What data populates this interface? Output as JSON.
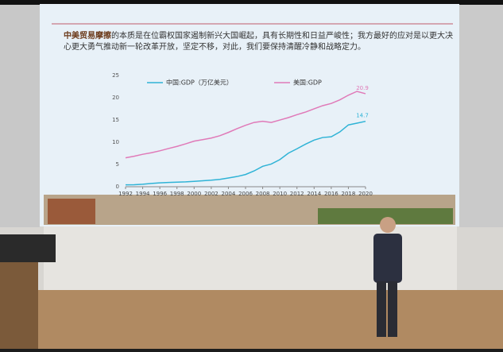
{
  "slide_text": {
    "lead": "中美贸易摩擦",
    "rest_line1": "的本质是在位霸权国家遏制新兴大国崛起，具有长期性和日益严峻性；我方最好的应对是以更大决",
    "line2": "心更大勇气推动新一轮改革开放，坚定不移，对此，我们要保持清醒冷静和战略定力。"
  },
  "chart_data": {
    "type": "line",
    "x": [
      1992,
      1993,
      1994,
      1995,
      1996,
      1997,
      1998,
      1999,
      2000,
      2001,
      2002,
      2003,
      2004,
      2005,
      2006,
      2007,
      2008,
      2009,
      2010,
      2011,
      2012,
      2013,
      2014,
      2015,
      2016,
      2017,
      2018,
      2019,
      2020
    ],
    "series": [
      {
        "name": "美国:GDP",
        "color": "#e07ab8",
        "values": [
          6.5,
          6.86,
          7.29,
          7.64,
          8.07,
          8.58,
          9.06,
          9.63,
          10.25,
          10.58,
          10.94,
          11.46,
          12.21,
          13.04,
          13.81,
          14.45,
          14.71,
          14.45,
          14.99,
          15.54,
          16.2,
          16.78,
          17.52,
          18.22,
          18.71,
          19.52,
          20.58,
          21.43,
          20.9
        ]
      },
      {
        "name": "中国:GDP（万亿美元）",
        "color": "#2fb3d6",
        "values": [
          0.43,
          0.44,
          0.56,
          0.73,
          0.86,
          0.96,
          1.03,
          1.09,
          1.21,
          1.34,
          1.47,
          1.66,
          1.96,
          2.29,
          2.75,
          3.55,
          4.59,
          5.1,
          6.09,
          7.55,
          8.53,
          9.57,
          10.48,
          11.06,
          11.23,
          12.31,
          13.89,
          14.28,
          14.7
        ]
      }
    ],
    "xlim": [
      1992,
      2020
    ],
    "xticks": [
      1992,
      1994,
      1996,
      1998,
      2000,
      2002,
      2004,
      2006,
      2008,
      2010,
      2012,
      2014,
      2016,
      2018,
      2020
    ],
    "ylim": [
      0,
      25
    ],
    "yticks": [
      0,
      5,
      10,
      15,
      20,
      25
    ],
    "grid": false
  }
}
